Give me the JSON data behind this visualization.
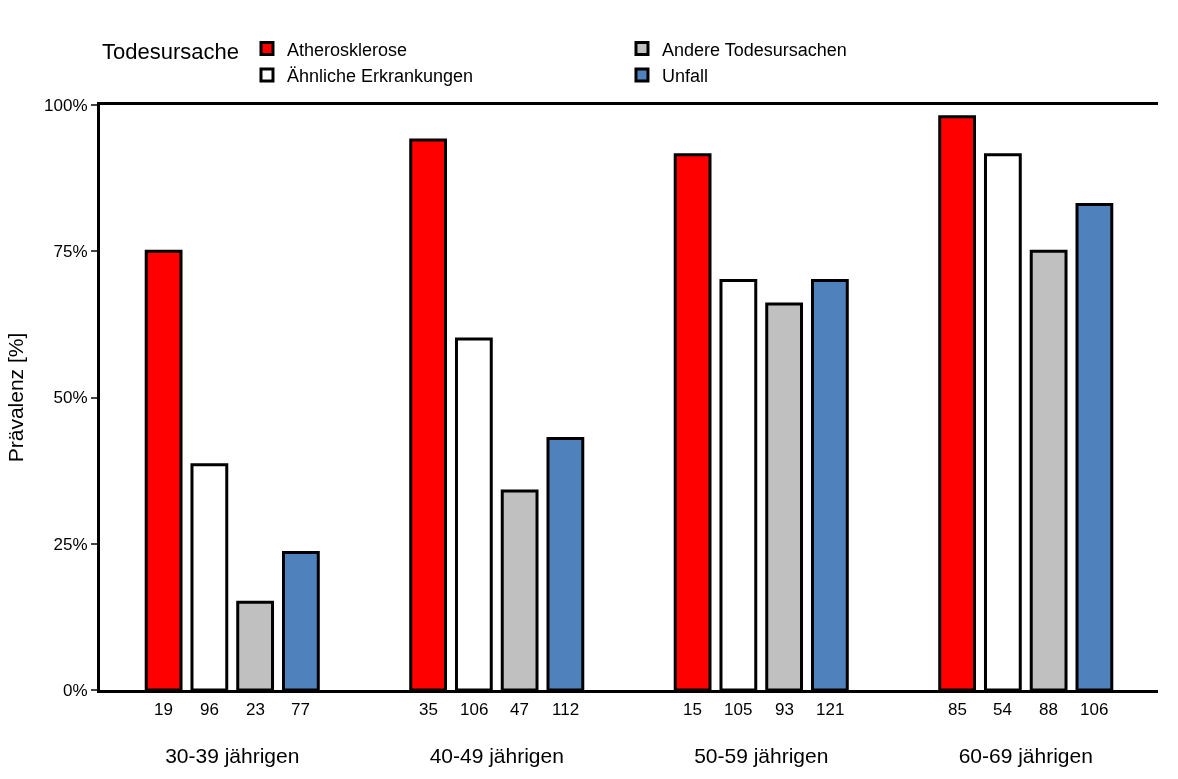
{
  "chart_data": {
    "type": "bar",
    "ylabel": "Prävalenz [%]",
    "legend_title": "Todesursache",
    "legend": "top",
    "categories": [
      "30-39 jährigen",
      "40-49 jährigen",
      "50-59 jährigen",
      "60-69 jährigen"
    ],
    "series": [
      {
        "name": "Atherosklerose",
        "color": "#ff0000",
        "values": [
          75,
          94,
          91.5,
          98
        ]
      },
      {
        "name": "Ähnliche Erkrankungen",
        "color": "#ffffff",
        "values": [
          38.5,
          60,
          70,
          91.5
        ]
      },
      {
        "name": "Andere Todesursachen",
        "color": "#c0c0c0",
        "values": [
          15,
          34,
          66,
          75
        ]
      },
      {
        "name": "Unfall",
        "color": "#4f81bd",
        "values": [
          23.5,
          43,
          70,
          83
        ]
      }
    ],
    "ylim": [
      0,
      100
    ],
    "yticks": [
      {
        "value": 0,
        "label": "0%"
      },
      {
        "value": 25,
        "label": "25%"
      },
      {
        "value": 50,
        "label": "50%"
      },
      {
        "value": 75,
        "label": "75%"
      },
      {
        "value": 100,
        "label": "100%"
      }
    ],
    "annotations": [
      "19",
      "96",
      "23",
      "77",
      "35",
      "106",
      "47",
      "112",
      "15",
      "105",
      "93",
      "121",
      "85",
      "54",
      "88",
      "106"
    ]
  }
}
